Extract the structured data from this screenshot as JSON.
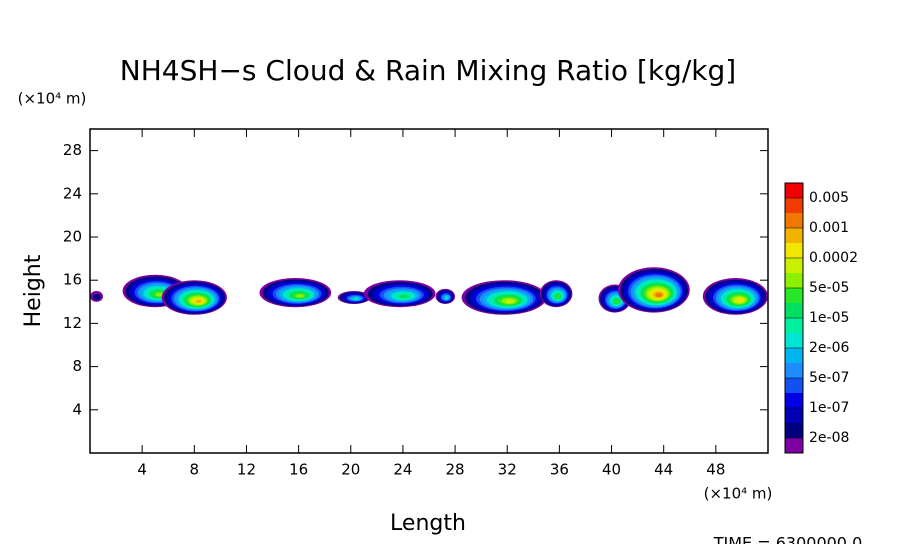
{
  "chart_data": {
    "type": "contour",
    "title": "NH4SH−s Cloud & Rain Mixing Ratio [kg/kg]",
    "x_label": "Length",
    "y_label": "Height",
    "x_unit": "(×10⁴ m)",
    "y_unit": "(×10⁴ m)",
    "footer": "TIME = 6300000.0",
    "xlim": [
      0,
      52
    ],
    "ylim": [
      0,
      30
    ],
    "xticks": [
      4,
      8,
      12,
      16,
      20,
      24,
      28,
      32,
      36,
      40,
      44,
      48
    ],
    "yticks": [
      4,
      8,
      12,
      16,
      20,
      24,
      28
    ],
    "colorbar": {
      "colors": [
        "#7f00a0",
        "#00007f",
        "#0000b4",
        "#0000e6",
        "#1450f0",
        "#1e8cff",
        "#00b4f0",
        "#00e6d2",
        "#00f0a0",
        "#00e060",
        "#28e628",
        "#8cf000",
        "#c8f000",
        "#f0e600",
        "#f0b400",
        "#f07800",
        "#f03c00",
        "#f00000",
        "#f05050",
        "#f8a0a0"
      ],
      "ticks": [
        {
          "value": 2e-08,
          "label": "2e-08"
        },
        {
          "value": 1e-07,
          "label": "1e-07"
        },
        {
          "value": 5e-07,
          "label": "5e-07"
        },
        {
          "value": 2e-06,
          "label": "2e-06"
        },
        {
          "value": 1e-05,
          "label": "1e-05"
        },
        {
          "value": 5e-05,
          "label": "5e-05"
        },
        0.0002,
        0.001,
        0.005
      ]
    },
    "features": [
      {
        "x": [
          0,
          1
        ],
        "y": [
          14,
          15
        ],
        "level": 1
      },
      {
        "x": [
          2.5,
          7.5
        ],
        "y": [
          13.5,
          16.5
        ],
        "level": 11
      },
      {
        "x": [
          5.5,
          10.5
        ],
        "y": [
          12.8,
          16
        ],
        "level": 14
      },
      {
        "x": [
          13,
          18.5
        ],
        "y": [
          13.5,
          16.2
        ],
        "level": 11
      },
      {
        "x": [
          19,
          21.5
        ],
        "y": [
          13.8,
          15
        ],
        "level": 7
      },
      {
        "x": [
          21,
          26.5
        ],
        "y": [
          13.5,
          16
        ],
        "level": 9
      },
      {
        "x": [
          26.5,
          28
        ],
        "y": [
          13.8,
          15.2
        ],
        "level": 7
      },
      {
        "x": [
          28.5,
          35
        ],
        "y": [
          12.8,
          16
        ],
        "level": 12
      },
      {
        "x": [
          34.5,
          37
        ],
        "y": [
          13.5,
          16
        ],
        "level": 10
      },
      {
        "x": [
          39,
          41.5
        ],
        "y": [
          13,
          15.6
        ],
        "level": 10
      },
      {
        "x": [
          40.5,
          46
        ],
        "y": [
          13,
          17.2
        ],
        "level": 15
      },
      {
        "x": [
          47,
          52
        ],
        "y": [
          12.8,
          16.2
        ],
        "level": 13
      }
    ]
  }
}
